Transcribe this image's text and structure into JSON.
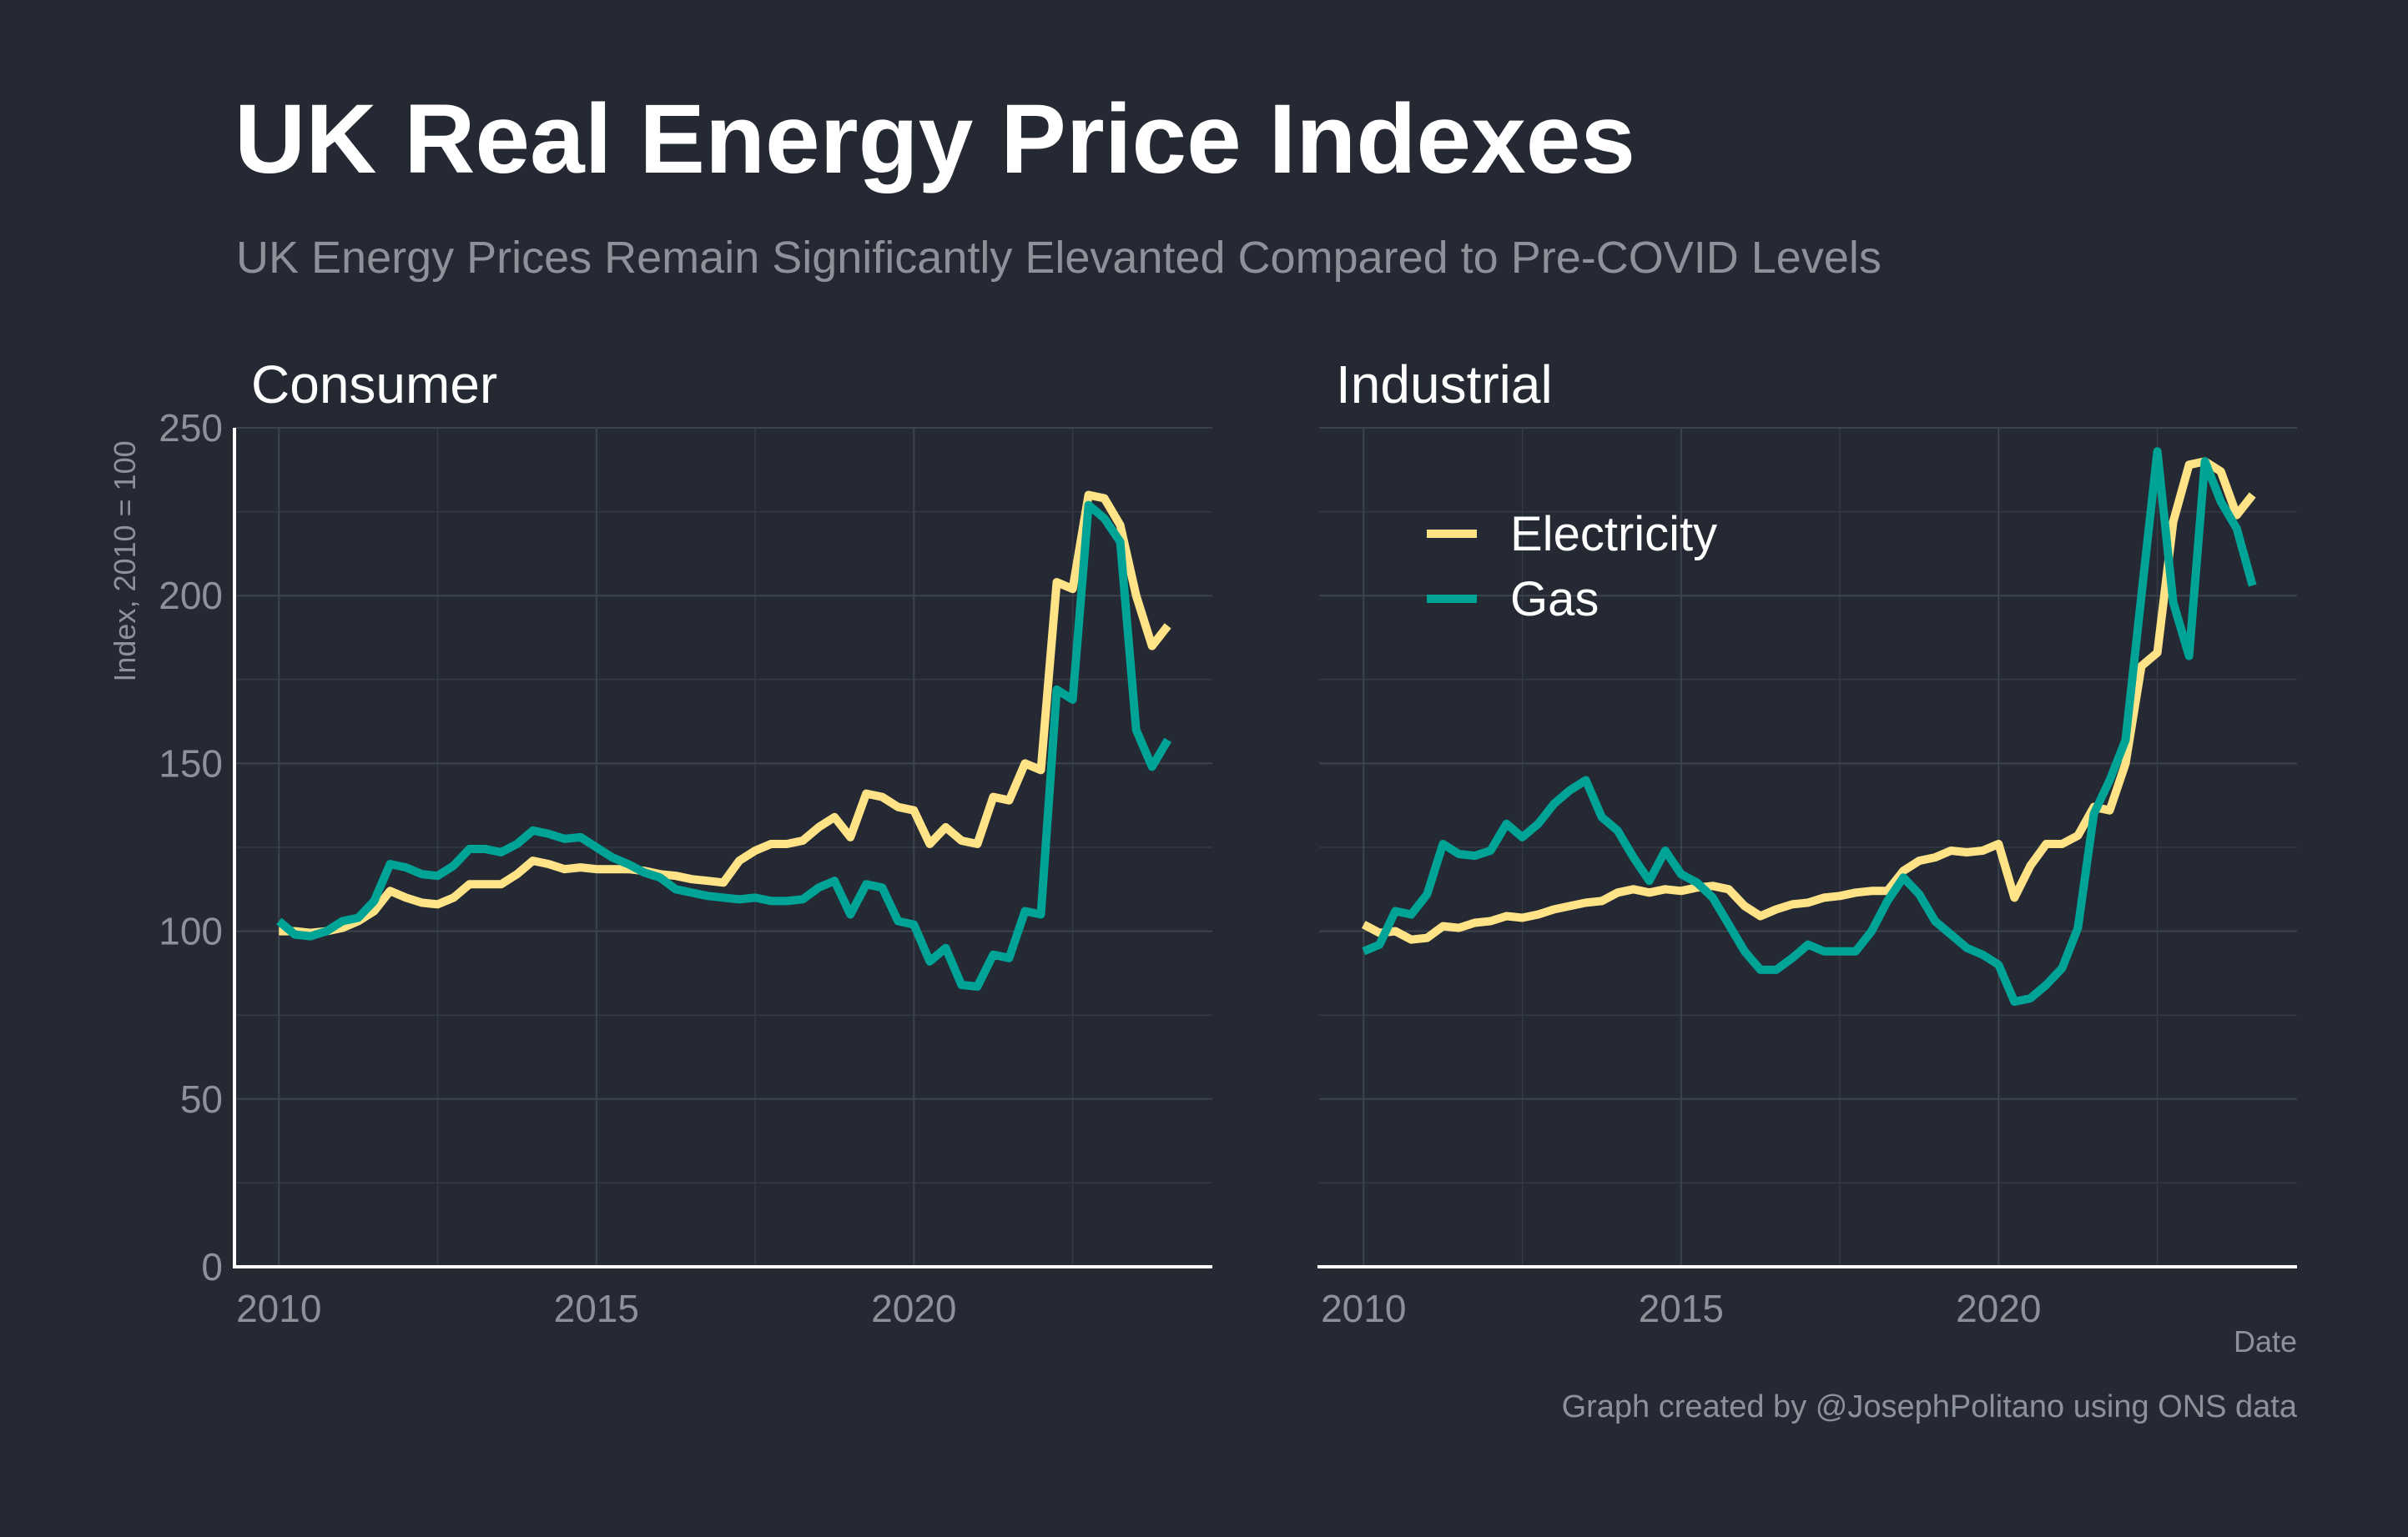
{
  "title": "UK Real Energy Price Indexes",
  "subtitle": "UK Energy Prices Remain Significantly Elevanted Compared to Pre-COVID Levels",
  "caption": "Graph created by @JosephPolitano using ONS data",
  "colors": {
    "background": "#242933",
    "electricity": "#ffe386",
    "gas": "#00a497"
  },
  "chart_data": [
    {
      "type": "line",
      "panel": "Consumer",
      "ylabel": "Index, 2010 = 100",
      "xlabel": "",
      "xlim": [
        2009.3,
        2024.7
      ],
      "ylim": [
        0,
        250
      ],
      "xticks": [
        2010,
        2015,
        2020
      ],
      "yticks": [
        0,
        50,
        100,
        150,
        200,
        250
      ],
      "grid": true,
      "series": [
        {
          "name": "Electricity",
          "x": [
            2010,
            2010.25,
            2010.5,
            2010.75,
            2011,
            2011.25,
            2011.5,
            2011.75,
            2012,
            2012.25,
            2012.5,
            2012.75,
            2013,
            2013.25,
            2013.5,
            2013.75,
            2014,
            2014.25,
            2014.5,
            2014.75,
            2015,
            2015.25,
            2015.5,
            2015.75,
            2016,
            2016.25,
            2016.5,
            2016.75,
            2017,
            2017.25,
            2017.5,
            2017.75,
            2018,
            2018.25,
            2018.5,
            2018.75,
            2019,
            2019.25,
            2019.5,
            2019.75,
            2020,
            2020.25,
            2020.5,
            2020.75,
            2021,
            2021.25,
            2021.5,
            2021.75,
            2022,
            2022.25,
            2022.5,
            2022.75,
            2023,
            2023.25,
            2023.5,
            2023.75,
            2024
          ],
          "values": [
            100,
            100,
            99.5,
            100,
            101,
            103,
            106,
            112,
            110,
            108.5,
            108,
            110,
            114,
            114,
            114,
            117,
            121,
            120,
            118.5,
            119,
            118.5,
            118.5,
            118.5,
            118,
            117,
            116.5,
            115.5,
            115,
            114.5,
            121,
            124,
            126,
            126,
            127,
            131,
            134,
            128,
            141,
            140,
            137,
            136,
            126,
            131,
            127,
            126,
            140,
            139,
            150,
            148,
            204,
            202,
            230,
            229,
            221,
            200,
            185,
            191
          ]
        },
        {
          "name": "Gas",
          "x": [
            2010,
            2010.25,
            2010.5,
            2010.75,
            2011,
            2011.25,
            2011.5,
            2011.75,
            2012,
            2012.25,
            2012.5,
            2012.75,
            2013,
            2013.25,
            2013.5,
            2013.75,
            2014,
            2014.25,
            2014.5,
            2014.75,
            2015,
            2015.25,
            2015.5,
            2015.75,
            2016,
            2016.25,
            2016.5,
            2016.75,
            2017,
            2017.25,
            2017.5,
            2017.75,
            2018,
            2018.25,
            2018.5,
            2018.75,
            2019,
            2019.25,
            2019.5,
            2019.75,
            2020,
            2020.25,
            2020.5,
            2020.75,
            2021,
            2021.25,
            2021.5,
            2021.75,
            2022,
            2022.25,
            2022.5,
            2022.75,
            2023,
            2023.25,
            2023.5,
            2023.75,
            2024
          ],
          "values": [
            103,
            99,
            98.5,
            100,
            103,
            104,
            109,
            120,
            119,
            117,
            116.5,
            119.5,
            124.5,
            124.5,
            123.5,
            126,
            130,
            129,
            127.5,
            128,
            125,
            122,
            120,
            117.5,
            116,
            112.5,
            111.5,
            110.5,
            110,
            109.5,
            110,
            109,
            109,
            109.5,
            113,
            115,
            105,
            114,
            113,
            103,
            102,
            91,
            95,
            84,
            83.5,
            93,
            92,
            106,
            105,
            172,
            169,
            227,
            223,
            216,
            160,
            149,
            157
          ]
        }
      ]
    },
    {
      "type": "line",
      "panel": "Industrial",
      "ylabel": "",
      "xlabel": "Date",
      "xlim": [
        2009.3,
        2024.7
      ],
      "ylim": [
        0,
        250
      ],
      "xticks": [
        2010,
        2015,
        2020
      ],
      "yticks": [
        0,
        50,
        100,
        150,
        200,
        250
      ],
      "grid": true,
      "legend": "top-left",
      "series": [
        {
          "name": "Electricity",
          "x": [
            2010,
            2010.25,
            2010.5,
            2010.75,
            2011,
            2011.25,
            2011.5,
            2011.75,
            2012,
            2012.25,
            2012.5,
            2012.75,
            2013,
            2013.25,
            2013.5,
            2013.75,
            2014,
            2014.25,
            2014.5,
            2014.75,
            2015,
            2015.25,
            2015.5,
            2015.75,
            2016,
            2016.25,
            2016.5,
            2016.75,
            2017,
            2017.25,
            2017.5,
            2017.75,
            2018,
            2018.25,
            2018.5,
            2018.75,
            2019,
            2019.25,
            2019.5,
            2019.75,
            2020,
            2020.25,
            2020.5,
            2020.75,
            2021,
            2021.25,
            2021.5,
            2021.75,
            2022,
            2022.25,
            2022.5,
            2022.75,
            2023,
            2023.25,
            2023.5,
            2023.75,
            2024
          ],
          "values": [
            102,
            99.5,
            100,
            97.5,
            98,
            101.5,
            101,
            102.5,
            103,
            104.5,
            104,
            105,
            106.5,
            107.5,
            108.5,
            109,
            111.5,
            112.5,
            111.5,
            112.5,
            112,
            113,
            113.5,
            112.5,
            107.5,
            104.5,
            106.5,
            108,
            108.5,
            110,
            110.5,
            111.5,
            112,
            112,
            118,
            121,
            122,
            124,
            123.5,
            124,
            126,
            110,
            119.5,
            126,
            126,
            128.5,
            137,
            136,
            150,
            179,
            183,
            222,
            239,
            240,
            237,
            224,
            230
          ]
        },
        {
          "name": "Gas",
          "x": [
            2010,
            2010.25,
            2010.5,
            2010.75,
            2011,
            2011.25,
            2011.5,
            2011.75,
            2012,
            2012.25,
            2012.5,
            2012.75,
            2013,
            2013.25,
            2013.5,
            2013.75,
            2014,
            2014.25,
            2014.5,
            2014.75,
            2015,
            2015.25,
            2015.5,
            2015.75,
            2016,
            2016.25,
            2016.5,
            2016.75,
            2017,
            2017.25,
            2017.5,
            2017.75,
            2018,
            2018.25,
            2018.5,
            2018.75,
            2019,
            2019.25,
            2019.5,
            2019.75,
            2020,
            2020.25,
            2020.5,
            2020.75,
            2021,
            2021.25,
            2021.5,
            2021.75,
            2022,
            2022.25,
            2022.5,
            2022.75,
            2023,
            2023.25,
            2023.5,
            2023.75,
            2024
          ],
          "values": [
            94,
            96,
            106,
            105,
            111,
            126,
            123,
            122.5,
            124,
            132,
            128,
            132,
            138,
            142,
            145,
            134,
            130,
            122,
            115,
            124,
            117,
            114.5,
            110,
            102,
            94,
            88.5,
            88.5,
            92,
            96,
            94,
            94,
            94,
            100,
            109,
            116,
            111,
            103,
            99,
            95,
            93,
            90,
            79,
            80,
            84,
            89,
            101,
            135,
            145,
            157,
            200,
            243,
            198,
            182,
            240,
            228,
            220,
            203
          ]
        }
      ]
    }
  ]
}
